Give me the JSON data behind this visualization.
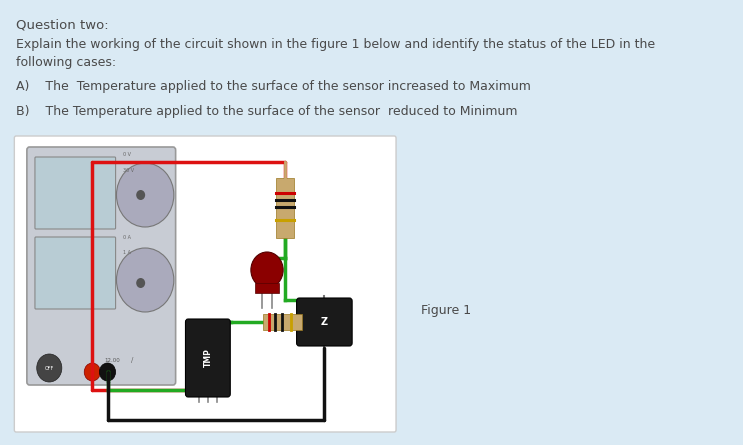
{
  "bg_color": "#daeaf4",
  "title_text": "Question two:",
  "line1": "Explain the working of the circuit shown in the figure 1 below and identify the status of the LED in the",
  "line2": "following cases:",
  "case_a": "A)    The  Temperature applied to the surface of the sensor increased to Maximum",
  "case_b": "B)    The Temperature applied to the surface of the sensor  reduced to Minimum",
  "figure_label": "Figure 1",
  "text_color": "#4a4a4a",
  "font_size_title": 9.5,
  "font_size_body": 9.0,
  "psu_color": "#c8ccd4",
  "psu_border": "#999999",
  "wire_red": "#dd1111",
  "wire_green": "#22aa22",
  "wire_black": "#111111",
  "resistor_body": "#c8a96e",
  "resistor_band_red": "#cc0000",
  "resistor_band_black": "#111111",
  "resistor_band_gold": "#c8a000",
  "led_color": "#8b0000",
  "transistor_color": "#1a1a1a",
  "tmp_color": "#1a1a1a",
  "screen_color": "#b8ccd4",
  "knob_color": "#aaaabc",
  "fig_box_color": "#ffffff",
  "fig_box_edge": "#cccccc"
}
